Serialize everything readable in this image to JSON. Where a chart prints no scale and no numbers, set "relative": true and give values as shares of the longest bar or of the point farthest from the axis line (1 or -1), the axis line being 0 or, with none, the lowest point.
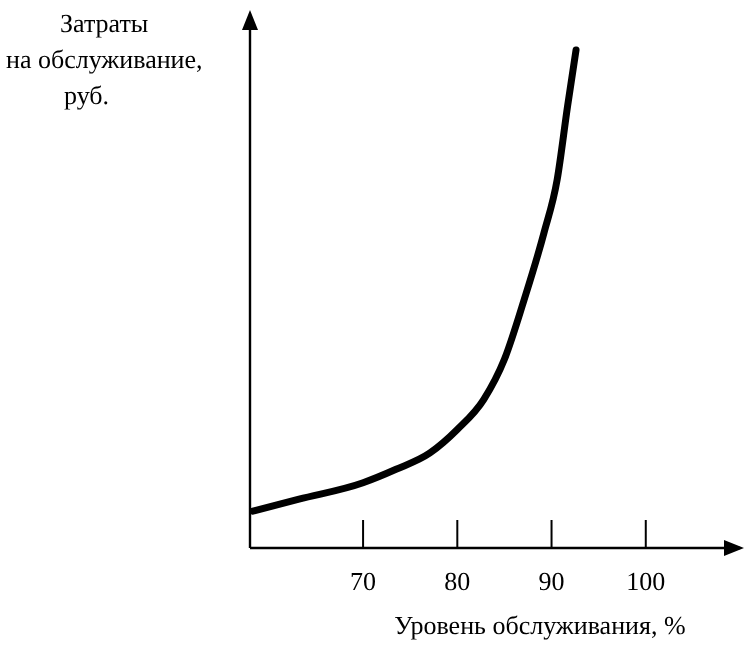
{
  "chart_data": {
    "type": "line",
    "relative": true,
    "ylabel": "Затраты\nна обслуживание,\nруб.",
    "xlabel": "Уровень обслуживания, %",
    "xlim": [
      58,
      110
    ],
    "xticks": [
      70,
      80,
      90,
      100
    ],
    "grid": false,
    "marker": "none",
    "line_style": "solid",
    "series": [
      {
        "color": "#000000",
        "x": [
          58.3,
          63.2,
          70,
          73.5,
          77.1,
          80,
          82.8,
          85,
          87.1,
          89.2,
          90.6,
          91.7,
          92.6
        ],
        "values": [
          0.074,
          0.098,
          0.131,
          0.158,
          0.191,
          0.238,
          0.298,
          0.379,
          0.499,
          0.633,
          0.74,
          0.887,
          1
        ]
      }
    ]
  }
}
